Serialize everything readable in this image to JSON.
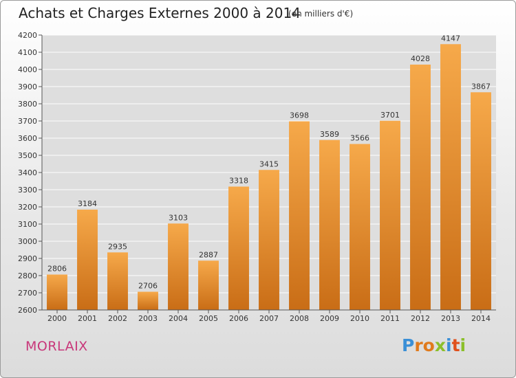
{
  "title": "Achats et Charges Externes 2000 à 2014",
  "subtitle": "(en milliers d'€)",
  "city": "MORLAIX",
  "logo": {
    "letters": [
      "P",
      "r",
      "o",
      "x",
      "i",
      "t",
      "i"
    ],
    "colors": [
      "#3a8fd6",
      "#e07a1c",
      "#e07a1c",
      "#8bbf2a",
      "#3a8fd6",
      "#e0501c",
      "#8bbf2a"
    ]
  },
  "colors": {
    "bar_top": "#f6a94a",
    "bar_bottom": "#c96d16",
    "grid": "#ffffff"
  },
  "chart_data": {
    "type": "bar",
    "title": "Achats et Charges Externes 2000 à 2014",
    "subtitle": "(en milliers d'€)",
    "xlabel": "",
    "ylabel": "",
    "categories": [
      "2000",
      "2001",
      "2002",
      "2003",
      "2004",
      "2005",
      "2006",
      "2007",
      "2008",
      "2009",
      "2010",
      "2011",
      "2012",
      "2013",
      "2014"
    ],
    "values": [
      2806,
      3184,
      2935,
      2706,
      3103,
      2887,
      3318,
      3415,
      3698,
      3589,
      3566,
      3701,
      4028,
      4147,
      3867
    ],
    "ylim": [
      2600,
      4200
    ],
    "yticks": [
      2600,
      2700,
      2800,
      2900,
      3000,
      3100,
      3200,
      3300,
      3400,
      3500,
      3600,
      3700,
      3800,
      3900,
      4000,
      4100,
      4200
    ],
    "grid": true,
    "data_labels": true
  }
}
